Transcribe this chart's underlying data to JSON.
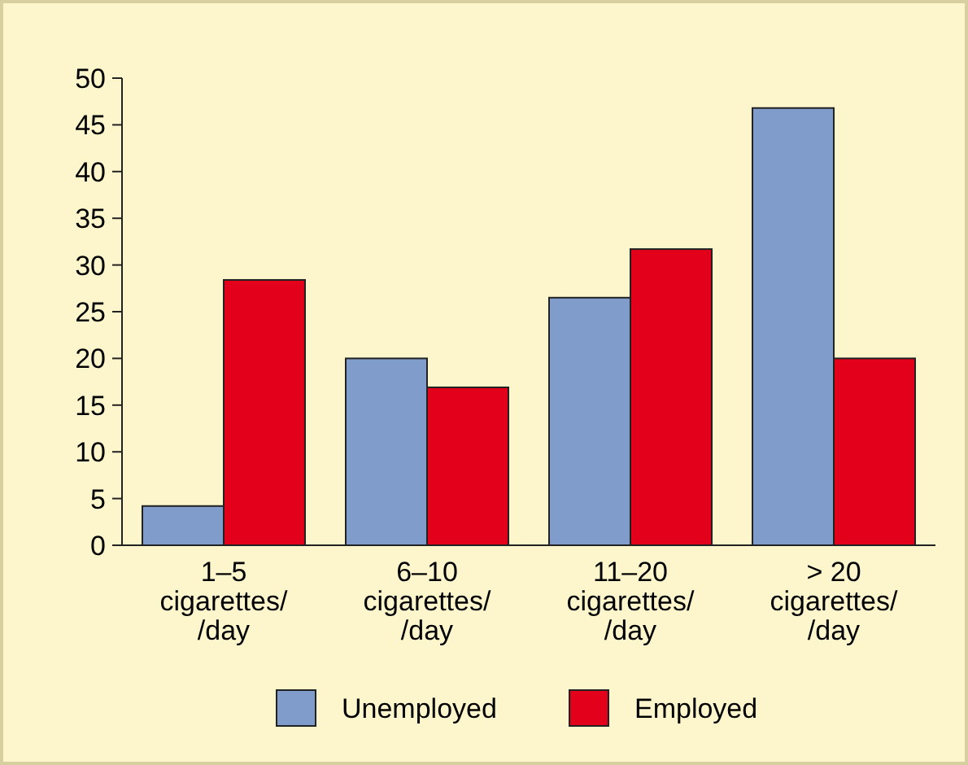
{
  "chart_data": {
    "type": "bar",
    "categories": [
      "1–5\ncigarettes/\n/day",
      "6–10\ncigarettes/\n/day",
      "11–20\ncigarettes/\n/day",
      "> 20\ncigarettes/\n/day"
    ],
    "series": [
      {
        "name": "Unemployed",
        "color": "#7f9ccb",
        "values": [
          4.2,
          20,
          26.5,
          46.8
        ]
      },
      {
        "name": "Employed",
        "color": "#e2001a",
        "values": [
          28.4,
          16.9,
          31.7,
          20
        ]
      }
    ],
    "ylim": [
      0,
      50
    ],
    "yticks": [
      0,
      5,
      10,
      15,
      20,
      25,
      30,
      35,
      40,
      45,
      50
    ],
    "grid": false,
    "legend": "bottom"
  }
}
